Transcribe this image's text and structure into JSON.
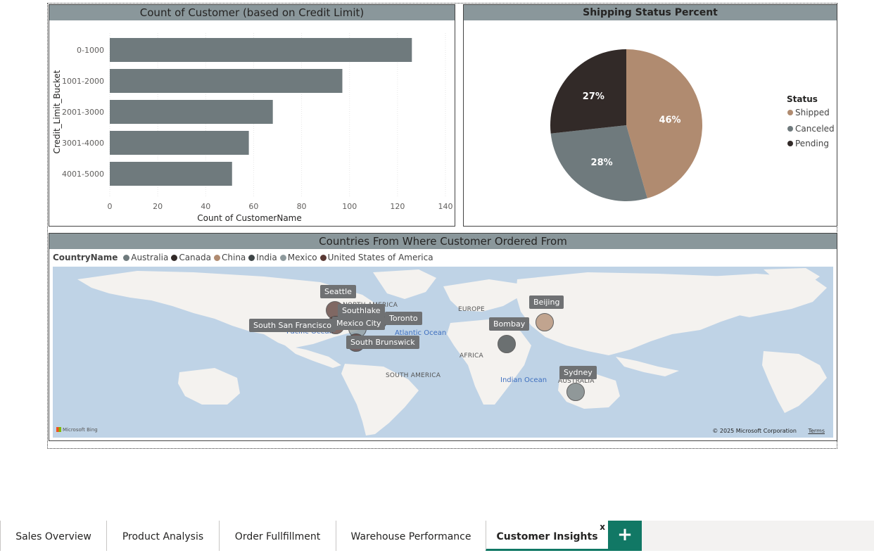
{
  "bar_panel": {
    "title": "Count of Customer (based on Credit Limit)",
    "chart_data": {
      "type": "bar",
      "orientation": "horizontal",
      "title": "Count of Customer (based on Credit Limit)",
      "xlabel": "Count of CustomerName",
      "ylabel": "Credit_Limit_Bucket",
      "categories": [
        "0-1000",
        "1001-2000",
        "2001-3000",
        "3001-4000",
        "4001-5000"
      ],
      "values": [
        126,
        97,
        68,
        58,
        51
      ],
      "xlim": [
        0,
        140
      ],
      "xticks": [
        "0",
        "20",
        "40",
        "60",
        "80",
        "100",
        "120",
        "140"
      ],
      "bar_color": "#6f7a7d",
      "grid": true
    }
  },
  "pie_panel": {
    "title": "Shipping Status Percent",
    "legend_title": "Status",
    "chart_data": {
      "type": "pie",
      "title": "Shipping Status Percent",
      "legend_title": "Status",
      "legend_position": "right",
      "labels": [
        "Shipped",
        "Canceled",
        "Pending"
      ],
      "values": [
        46,
        28,
        27
      ],
      "display_labels": [
        "46%",
        "28%",
        "27%"
      ],
      "colors": [
        "#b08b70",
        "#6f7a7d",
        "#322a28"
      ]
    }
  },
  "map_panel": {
    "title": "Countries From Where Customer Ordered From",
    "legend_title": "CountryName",
    "legend": [
      {
        "name": "Australia",
        "color": "#6f7a7d"
      },
      {
        "name": "Canada",
        "color": "#322a28"
      },
      {
        "name": "China",
        "color": "#b08b70"
      },
      {
        "name": "India",
        "color": "#3e4547"
      },
      {
        "name": "Mexico",
        "color": "#8e9a9d"
      },
      {
        "name": "United States of America",
        "color": "#5a3a35"
      }
    ],
    "cities": [
      {
        "name": "Seattle",
        "country": "United States of America"
      },
      {
        "name": "Southlake",
        "country": "United States of America"
      },
      {
        "name": "Toronto",
        "country": "Canada"
      },
      {
        "name": "South San Francisco",
        "country": "United States of America"
      },
      {
        "name": "Mexico City",
        "country": "Mexico"
      },
      {
        "name": "South Brunswick",
        "country": "United States of America"
      },
      {
        "name": "Bombay",
        "country": "India"
      },
      {
        "name": "Beijing",
        "country": "China"
      },
      {
        "name": "Sydney",
        "country": "Australia"
      }
    ],
    "geo_labels": [
      "NORTH AMERICA",
      "EUROPE",
      "AFRICA",
      "SOUTH AMERICA",
      "AUSTRALIA"
    ],
    "ocean_labels": [
      "Pacific Ocean",
      "Atlantic Ocean",
      "Indian Ocean"
    ],
    "logo_text": "Microsoft Bing",
    "copyright": "© 2025 Microsoft Corporation",
    "terms": "Terms"
  },
  "tabs": [
    {
      "label": "Sales Overview",
      "active": false
    },
    {
      "label": "Product Analysis",
      "active": false
    },
    {
      "label": "Order Fullfillment",
      "active": false
    },
    {
      "label": "Warehouse Performance",
      "active": false
    },
    {
      "label": "Customer Insights",
      "active": true
    }
  ],
  "tab_close_label": "x",
  "add_tab_label": "+",
  "icons": {
    "add_page": "plus-icon",
    "close_tab": "close-icon",
    "bing": "bing-logo-icon"
  }
}
